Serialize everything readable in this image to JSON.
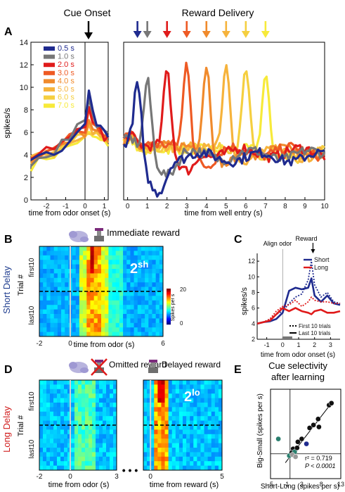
{
  "figure": {
    "panel_letters": {
      "A": "A",
      "B": "B",
      "C": "C",
      "D": "D",
      "E": "E"
    },
    "cue_onset_label": "Cue Onset",
    "reward_delivery_label": "Reward Delivery",
    "arrow_colors": [
      "#1f2b8f",
      "#777777",
      "#e01b1b",
      "#ee5a24",
      "#f08a2c",
      "#f6b33c",
      "#f5cf40",
      "#f7ea3a"
    ]
  },
  "chart_data": [
    {
      "panel": "A-left",
      "type": "line",
      "ylabel": "spikes/s",
      "xlabel": "time from odor onset (s)",
      "ylim": [
        0,
        14
      ],
      "xlim": [
        -2.8,
        1.2
      ],
      "yticks": [
        "0",
        "2",
        "4",
        "6",
        "8",
        "10",
        "12",
        "14"
      ],
      "xticks": [
        "-2",
        "-1",
        "0",
        "1"
      ],
      "legend": [
        "0.5 s",
        "1.0 s",
        "2.0 s",
        "3.0 s",
        "4.0 s",
        "5.0 s",
        "6.0 s",
        "7.0 s"
      ],
      "colors": [
        "#1f2b8f",
        "#777777",
        "#e01b1b",
        "#ee5a24",
        "#f08a2c",
        "#f6b33c",
        "#f5cf40",
        "#f7ea3a"
      ],
      "x": [
        -2.8,
        -2.4,
        -2.0,
        -1.6,
        -1.2,
        -0.8,
        -0.4,
        0.0,
        0.2,
        0.4,
        0.6,
        0.8,
        1.0,
        1.2
      ],
      "series": [
        {
          "values": [
            3.2,
            3.6,
            4.0,
            4.2,
            4.8,
            5.4,
            6.4,
            7.2,
            9.6,
            8.2,
            6.4,
            6.6,
            6.0,
            5.8
          ]
        },
        {
          "values": [
            3.4,
            3.8,
            4.1,
            4.4,
            4.9,
            5.6,
            6.6,
            7.4,
            9.0,
            7.6,
            6.8,
            6.2,
            5.8,
            5.6
          ]
        },
        {
          "values": [
            3.6,
            3.9,
            4.3,
            4.6,
            5.0,
            5.8,
            6.2,
            6.6,
            8.4,
            7.0,
            6.4,
            6.0,
            5.6,
            5.4
          ]
        },
        {
          "values": [
            3.8,
            4.0,
            4.4,
            4.7,
            5.2,
            5.8,
            6.0,
            6.2,
            7.8,
            6.8,
            6.2,
            5.8,
            5.6,
            5.6
          ]
        },
        {
          "values": [
            3.7,
            4.0,
            4.3,
            4.5,
            5.0,
            5.4,
            5.8,
            6.0,
            7.2,
            6.4,
            6.0,
            5.8,
            5.6,
            5.4
          ]
        },
        {
          "values": [
            3.5,
            3.8,
            4.1,
            4.4,
            4.8,
            5.2,
            5.6,
            5.8,
            6.8,
            6.0,
            5.8,
            5.6,
            5.4,
            5.2
          ]
        },
        {
          "values": [
            3.3,
            3.6,
            4.0,
            4.2,
            4.6,
            5.0,
            5.4,
            5.6,
            6.2,
            5.8,
            5.6,
            5.4,
            5.2,
            5.0
          ]
        },
        {
          "values": [
            3.0,
            3.4,
            3.8,
            4.0,
            4.4,
            4.8,
            5.2,
            5.4,
            5.8,
            5.6,
            5.4,
            5.2,
            5.0,
            5.0
          ]
        }
      ]
    },
    {
      "panel": "A-right",
      "type": "line",
      "xlabel": "time from well entry (s)",
      "ylim": [
        0,
        14
      ],
      "xlim": [
        -0.2,
        10
      ],
      "xticks": [
        "0",
        "1",
        "2",
        "3",
        "4",
        "5",
        "6",
        "7",
        "8",
        "9",
        "10"
      ],
      "peaks": [
        0.5,
        1.0,
        2.0,
        3.0,
        4.0,
        5.0,
        6.0,
        7.0
      ],
      "peak_values": [
        10.0,
        10.6,
        11.6,
        12.2,
        12.0,
        11.8,
        11.6,
        11.0
      ],
      "baseline": [
        4.4,
        4.6,
        4.8,
        4.9,
        4.8,
        4.7,
        4.6,
        4.5
      ],
      "dip_values": [
        0.6,
        2.2,
        2.6,
        3.0,
        3.2,
        3.4,
        3.6,
        3.8
      ]
    },
    {
      "panel": "B",
      "type": "heatmap",
      "title": "Immediate reward",
      "xlabel": "time from odor (s)",
      "ylabel": "Trial #",
      "side_label": "Short Delay",
      "tag": "2",
      "tag_sup": "sh",
      "xticks": [
        "-2",
        "0",
        "6"
      ],
      "yticks": [
        "first10",
        "last10"
      ],
      "colorbar_ticks": [
        "20",
        "0"
      ],
      "colorbar_label": "Spikes per s"
    },
    {
      "panel": "C",
      "type": "line",
      "ylabel": "spikes/s",
      "xlabel": "time from odor onset (s)",
      "ylim": [
        2,
        13
      ],
      "xlim": [
        -1.6,
        3.6
      ],
      "xticks": [
        "-1",
        "0",
        "1",
        "2",
        "3"
      ],
      "yticks": [
        "2",
        "4",
        "6",
        "8",
        "10",
        "12"
      ],
      "annotations": [
        "Align odor",
        "Reward"
      ],
      "legend": [
        "Short",
        "Long"
      ],
      "legend2": [
        "First 10 trials",
        "Last 10 trials"
      ],
      "x": [
        -1.6,
        -1.2,
        -0.8,
        -0.4,
        0.0,
        0.4,
        0.8,
        1.2,
        1.6,
        1.8,
        2.0,
        2.4,
        2.8,
        3.2,
        3.6
      ],
      "series": [
        {
          "name": "Short",
          "style": "solid",
          "color": "#1f2b8f",
          "values": [
            4.0,
            4.2,
            4.3,
            4.6,
            5.4,
            8.2,
            8.6,
            8.4,
            8.6,
            9.8,
            7.6,
            6.8,
            7.6,
            6.6,
            6.4
          ]
        },
        {
          "name": "Short",
          "style": "dotted",
          "color": "#1f2b8f",
          "values": [
            4.0,
            4.2,
            4.6,
            5.2,
            5.6,
            6.6,
            7.4,
            7.8,
            9.6,
            12.0,
            9.0,
            7.4,
            8.0,
            6.8,
            6.6
          ]
        },
        {
          "name": "Long",
          "style": "solid",
          "color": "#e01b1b",
          "values": [
            4.0,
            4.2,
            4.4,
            5.2,
            6.0,
            5.6,
            6.0,
            5.6,
            5.4,
            5.2,
            5.6,
            5.8,
            5.4,
            5.4,
            5.6
          ]
        },
        {
          "name": "Long",
          "style": "dotted",
          "color": "#e01b1b",
          "values": [
            4.0,
            4.2,
            4.6,
            5.6,
            6.2,
            6.4,
            7.0,
            6.2,
            6.8,
            7.4,
            7.0,
            6.8,
            6.8,
            6.6,
            6.6
          ]
        }
      ]
    },
    {
      "panel": "D",
      "type": "heatmap",
      "titles": [
        "Omitted reward",
        "Delayed reward"
      ],
      "xlabel_left": "time from odor (s)",
      "xlabel_right": "time from reward (s)",
      "ylabel": "Trial #",
      "side_label": "Long Delay",
      "tag": "2",
      "tag_sup": "lo",
      "xticks_left": [
        "-2",
        "0",
        "3"
      ],
      "xticks_right": [
        "0",
        "5"
      ],
      "yticks": [
        "first10",
        "last10"
      ],
      "dots": "• • •"
    },
    {
      "panel": "E",
      "type": "scatter",
      "title": "Cue selectivity after learning",
      "title_lines": [
        "Cue selectivity",
        "after learning"
      ],
      "xlabel": "Short-Long (spikes per s)",
      "ylabel": "Big-Small (spikes per s)",
      "xlim": [
        -5,
        13
      ],
      "ylim": [
        -5,
        13
      ],
      "xticks": [
        "-5",
        "-1",
        "3",
        "8",
        "13"
      ],
      "stat_r2": "r² = 0.719",
      "stat_p": "P < 0.0001",
      "points": [
        {
          "x": 10.0,
          "y": 9.8,
          "c": "#111111"
        },
        {
          "x": 10.6,
          "y": 10.2,
          "c": "#111111"
        },
        {
          "x": 7.2,
          "y": 7.0,
          "c": "#111111"
        },
        {
          "x": 6.0,
          "y": 5.8,
          "c": "#111111"
        },
        {
          "x": 5.0,
          "y": 5.2,
          "c": "#111111"
        },
        {
          "x": 7.4,
          "y": 5.4,
          "c": "#111111"
        },
        {
          "x": 3.0,
          "y": 3.0,
          "c": "#111111"
        },
        {
          "x": 2.0,
          "y": 2.4,
          "c": "#111111"
        },
        {
          "x": 4.2,
          "y": 2.0,
          "c": "#1f2b8f"
        },
        {
          "x": 0.8,
          "y": 1.0,
          "c": "#111111"
        },
        {
          "x": 0.4,
          "y": 0.2,
          "c": "#111111"
        },
        {
          "x": -0.2,
          "y": -0.4,
          "c": "#2a7f6e"
        },
        {
          "x": 1.2,
          "y": 0.4,
          "c": "#2a7f6e"
        },
        {
          "x": -3.0,
          "y": 3.0,
          "c": "#2a7f6e"
        },
        {
          "x": 0.6,
          "y": -0.2,
          "c": "#999999"
        },
        {
          "x": 1.4,
          "y": -0.6,
          "c": "#999999"
        },
        {
          "x": 1.8,
          "y": 1.2,
          "c": "#111111"
        }
      ]
    }
  ]
}
